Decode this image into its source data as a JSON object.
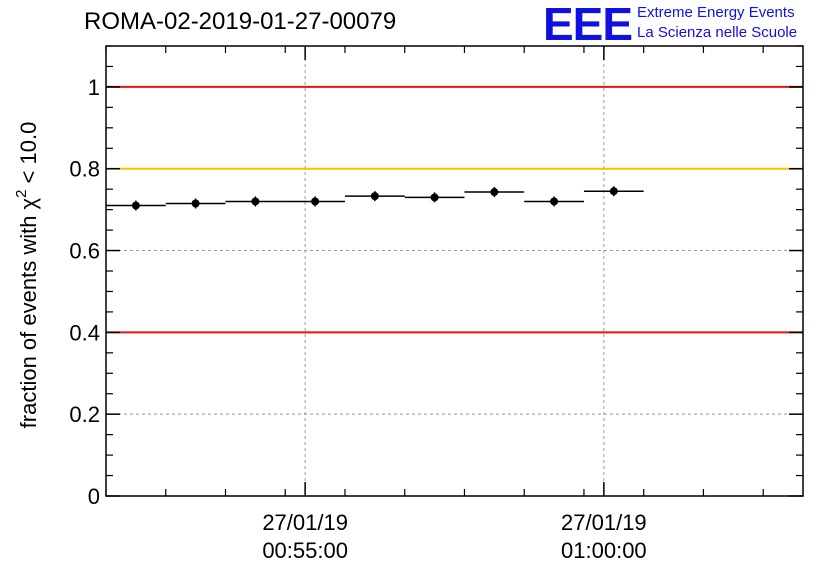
{
  "header": {
    "title": "ROMA-02-2019-01-27-00079"
  },
  "logo": {
    "mark": "EEE",
    "line1": "Extreme Energy Events",
    "line2": "La Scienza nelle Scuole",
    "color": "#1010e0"
  },
  "chart_data": {
    "type": "scatter",
    "title": "ROMA-02-2019-01-27-00079",
    "ylabel_prefix": "fraction of events with χ",
    "ylabel_sup": "2",
    "ylabel_suffix": " < 10.0",
    "ylim": [
      0,
      1.1
    ],
    "yticks": [
      0,
      0.2,
      0.4,
      0.6,
      0.8,
      1
    ],
    "ytick_labels": [
      "0",
      "0.2",
      "0.4",
      "0.6",
      "0.8",
      "1"
    ],
    "xlim_seconds": [
      0,
      700
    ],
    "xticks": [
      {
        "t": 200,
        "date": "27/01/19",
        "time": "00:55:00"
      },
      {
        "t": 500,
        "date": "27/01/19",
        "time": "01:00:00"
      }
    ],
    "grid": true,
    "reference_lines": [
      {
        "y": 1.0,
        "color": "#e8120c"
      },
      {
        "y": 0.8,
        "color": "#f5c400"
      },
      {
        "y": 0.4,
        "color": "#e8120c"
      }
    ],
    "points": [
      {
        "x": 30,
        "y": 0.71
      },
      {
        "x": 90,
        "y": 0.715
      },
      {
        "x": 150,
        "y": 0.72
      },
      {
        "x": 210,
        "y": 0.72
      },
      {
        "x": 270,
        "y": 0.733
      },
      {
        "x": 330,
        "y": 0.73
      },
      {
        "x": 390,
        "y": 0.743
      },
      {
        "x": 450,
        "y": 0.72
      },
      {
        "x": 510,
        "y": 0.745
      }
    ],
    "bin_half_width": 30
  }
}
